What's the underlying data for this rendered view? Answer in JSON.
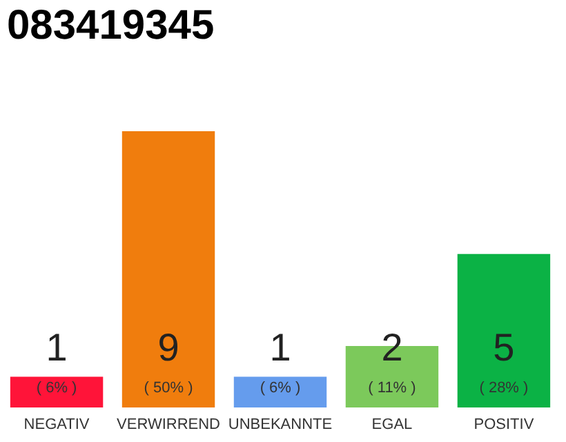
{
  "chart_data": {
    "type": "bar",
    "title": "083419345",
    "categories": [
      "NEGATIV",
      "VERWIRREND",
      "UNBEKANNTE",
      "EGAL",
      "POSITIV"
    ],
    "values": [
      1,
      9,
      1,
      2,
      5
    ],
    "colors": [
      "#ff1439",
      "#f07d0d",
      "#659ced",
      "#7cc95b",
      "#0bb245"
    ],
    "data_labels": true,
    "annotations": [
      "( 6% )",
      "( 50% )",
      "( 6% )",
      "( 11% )",
      "( 28% )"
    ],
    "grid": false
  }
}
